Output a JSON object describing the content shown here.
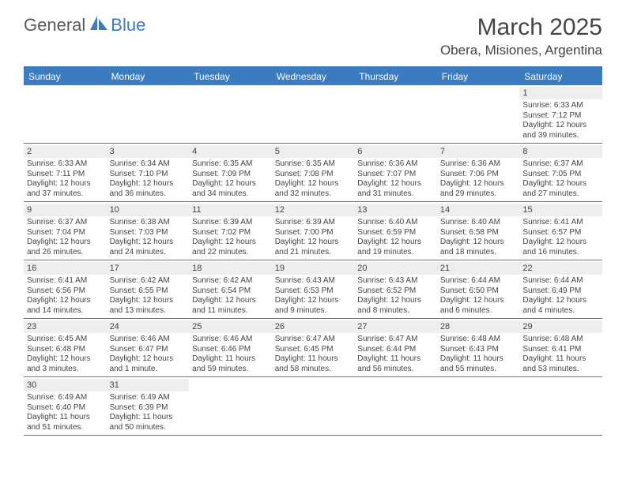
{
  "logo": {
    "part1": "General",
    "part2": "Blue"
  },
  "title": "March 2025",
  "location": "Obera, Misiones, Argentina",
  "day_names": [
    "Sunday",
    "Monday",
    "Tuesday",
    "Wednesday",
    "Thursday",
    "Friday",
    "Saturday"
  ],
  "colors": {
    "header_bg": "#3b7bbf",
    "header_text": "#ffffff",
    "rule": "#3b7bbf",
    "daynum_bg": "#eeeeee",
    "text": "#444444"
  },
  "weeks": [
    [
      null,
      null,
      null,
      null,
      null,
      null,
      {
        "n": "1",
        "sunrise": "6:33 AM",
        "sunset": "7:12 PM",
        "daylight": "12 hours and 39 minutes."
      }
    ],
    [
      {
        "n": "2",
        "sunrise": "6:33 AM",
        "sunset": "7:11 PM",
        "daylight": "12 hours and 37 minutes."
      },
      {
        "n": "3",
        "sunrise": "6:34 AM",
        "sunset": "7:10 PM",
        "daylight": "12 hours and 36 minutes."
      },
      {
        "n": "4",
        "sunrise": "6:35 AM",
        "sunset": "7:09 PM",
        "daylight": "12 hours and 34 minutes."
      },
      {
        "n": "5",
        "sunrise": "6:35 AM",
        "sunset": "7:08 PM",
        "daylight": "12 hours and 32 minutes."
      },
      {
        "n": "6",
        "sunrise": "6:36 AM",
        "sunset": "7:07 PM",
        "daylight": "12 hours and 31 minutes."
      },
      {
        "n": "7",
        "sunrise": "6:36 AM",
        "sunset": "7:06 PM",
        "daylight": "12 hours and 29 minutes."
      },
      {
        "n": "8",
        "sunrise": "6:37 AM",
        "sunset": "7:05 PM",
        "daylight": "12 hours and 27 minutes."
      }
    ],
    [
      {
        "n": "9",
        "sunrise": "6:37 AM",
        "sunset": "7:04 PM",
        "daylight": "12 hours and 26 minutes."
      },
      {
        "n": "10",
        "sunrise": "6:38 AM",
        "sunset": "7:03 PM",
        "daylight": "12 hours and 24 minutes."
      },
      {
        "n": "11",
        "sunrise": "6:39 AM",
        "sunset": "7:02 PM",
        "daylight": "12 hours and 22 minutes."
      },
      {
        "n": "12",
        "sunrise": "6:39 AM",
        "sunset": "7:00 PM",
        "daylight": "12 hours and 21 minutes."
      },
      {
        "n": "13",
        "sunrise": "6:40 AM",
        "sunset": "6:59 PM",
        "daylight": "12 hours and 19 minutes."
      },
      {
        "n": "14",
        "sunrise": "6:40 AM",
        "sunset": "6:58 PM",
        "daylight": "12 hours and 18 minutes."
      },
      {
        "n": "15",
        "sunrise": "6:41 AM",
        "sunset": "6:57 PM",
        "daylight": "12 hours and 16 minutes."
      }
    ],
    [
      {
        "n": "16",
        "sunrise": "6:41 AM",
        "sunset": "6:56 PM",
        "daylight": "12 hours and 14 minutes."
      },
      {
        "n": "17",
        "sunrise": "6:42 AM",
        "sunset": "6:55 PM",
        "daylight": "12 hours and 13 minutes."
      },
      {
        "n": "18",
        "sunrise": "6:42 AM",
        "sunset": "6:54 PM",
        "daylight": "12 hours and 11 minutes."
      },
      {
        "n": "19",
        "sunrise": "6:43 AM",
        "sunset": "6:53 PM",
        "daylight": "12 hours and 9 minutes."
      },
      {
        "n": "20",
        "sunrise": "6:43 AM",
        "sunset": "6:52 PM",
        "daylight": "12 hours and 8 minutes."
      },
      {
        "n": "21",
        "sunrise": "6:44 AM",
        "sunset": "6:50 PM",
        "daylight": "12 hours and 6 minutes."
      },
      {
        "n": "22",
        "sunrise": "6:44 AM",
        "sunset": "6:49 PM",
        "daylight": "12 hours and 4 minutes."
      }
    ],
    [
      {
        "n": "23",
        "sunrise": "6:45 AM",
        "sunset": "6:48 PM",
        "daylight": "12 hours and 3 minutes."
      },
      {
        "n": "24",
        "sunrise": "6:46 AM",
        "sunset": "6:47 PM",
        "daylight": "12 hours and 1 minute."
      },
      {
        "n": "25",
        "sunrise": "6:46 AM",
        "sunset": "6:46 PM",
        "daylight": "11 hours and 59 minutes."
      },
      {
        "n": "26",
        "sunrise": "6:47 AM",
        "sunset": "6:45 PM",
        "daylight": "11 hours and 58 minutes."
      },
      {
        "n": "27",
        "sunrise": "6:47 AM",
        "sunset": "6:44 PM",
        "daylight": "11 hours and 56 minutes."
      },
      {
        "n": "28",
        "sunrise": "6:48 AM",
        "sunset": "6:43 PM",
        "daylight": "11 hours and 55 minutes."
      },
      {
        "n": "29",
        "sunrise": "6:48 AM",
        "sunset": "6:41 PM",
        "daylight": "11 hours and 53 minutes."
      }
    ],
    [
      {
        "n": "30",
        "sunrise": "6:49 AM",
        "sunset": "6:40 PM",
        "daylight": "11 hours and 51 minutes."
      },
      {
        "n": "31",
        "sunrise": "6:49 AM",
        "sunset": "6:39 PM",
        "daylight": "11 hours and 50 minutes."
      },
      null,
      null,
      null,
      null,
      null
    ]
  ],
  "labels": {
    "sunrise_prefix": "Sunrise: ",
    "sunset_prefix": "Sunset: ",
    "daylight_prefix": "Daylight: "
  }
}
